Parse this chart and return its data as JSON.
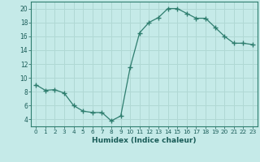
{
  "x": [
    0,
    1,
    2,
    3,
    4,
    5,
    6,
    7,
    8,
    9,
    10,
    11,
    12,
    13,
    14,
    15,
    16,
    17,
    18,
    19,
    20,
    21,
    22,
    23
  ],
  "y": [
    9,
    8.2,
    8.3,
    7.8,
    6,
    5.2,
    5,
    5,
    3.8,
    4.5,
    11.5,
    16.5,
    18,
    18.7,
    20,
    20,
    19.3,
    18.6,
    18.6,
    17.3,
    16,
    15,
    15,
    14.8
  ],
  "line_color": "#2e7d6e",
  "marker": "+",
  "marker_size": 5,
  "marker_linewidth": 1.0,
  "bg_color": "#c5eae8",
  "grid_color": "#b0d8d4",
  "xlabel": "Humidex (Indice chaleur)",
  "xlim": [
    -0.5,
    23.5
  ],
  "ylim": [
    3,
    21
  ],
  "yticks": [
    4,
    6,
    8,
    10,
    12,
    14,
    16,
    18,
    20
  ],
  "xticks": [
    0,
    1,
    2,
    3,
    4,
    5,
    6,
    7,
    8,
    9,
    10,
    11,
    12,
    13,
    14,
    15,
    16,
    17,
    18,
    19,
    20,
    21,
    22,
    23
  ]
}
